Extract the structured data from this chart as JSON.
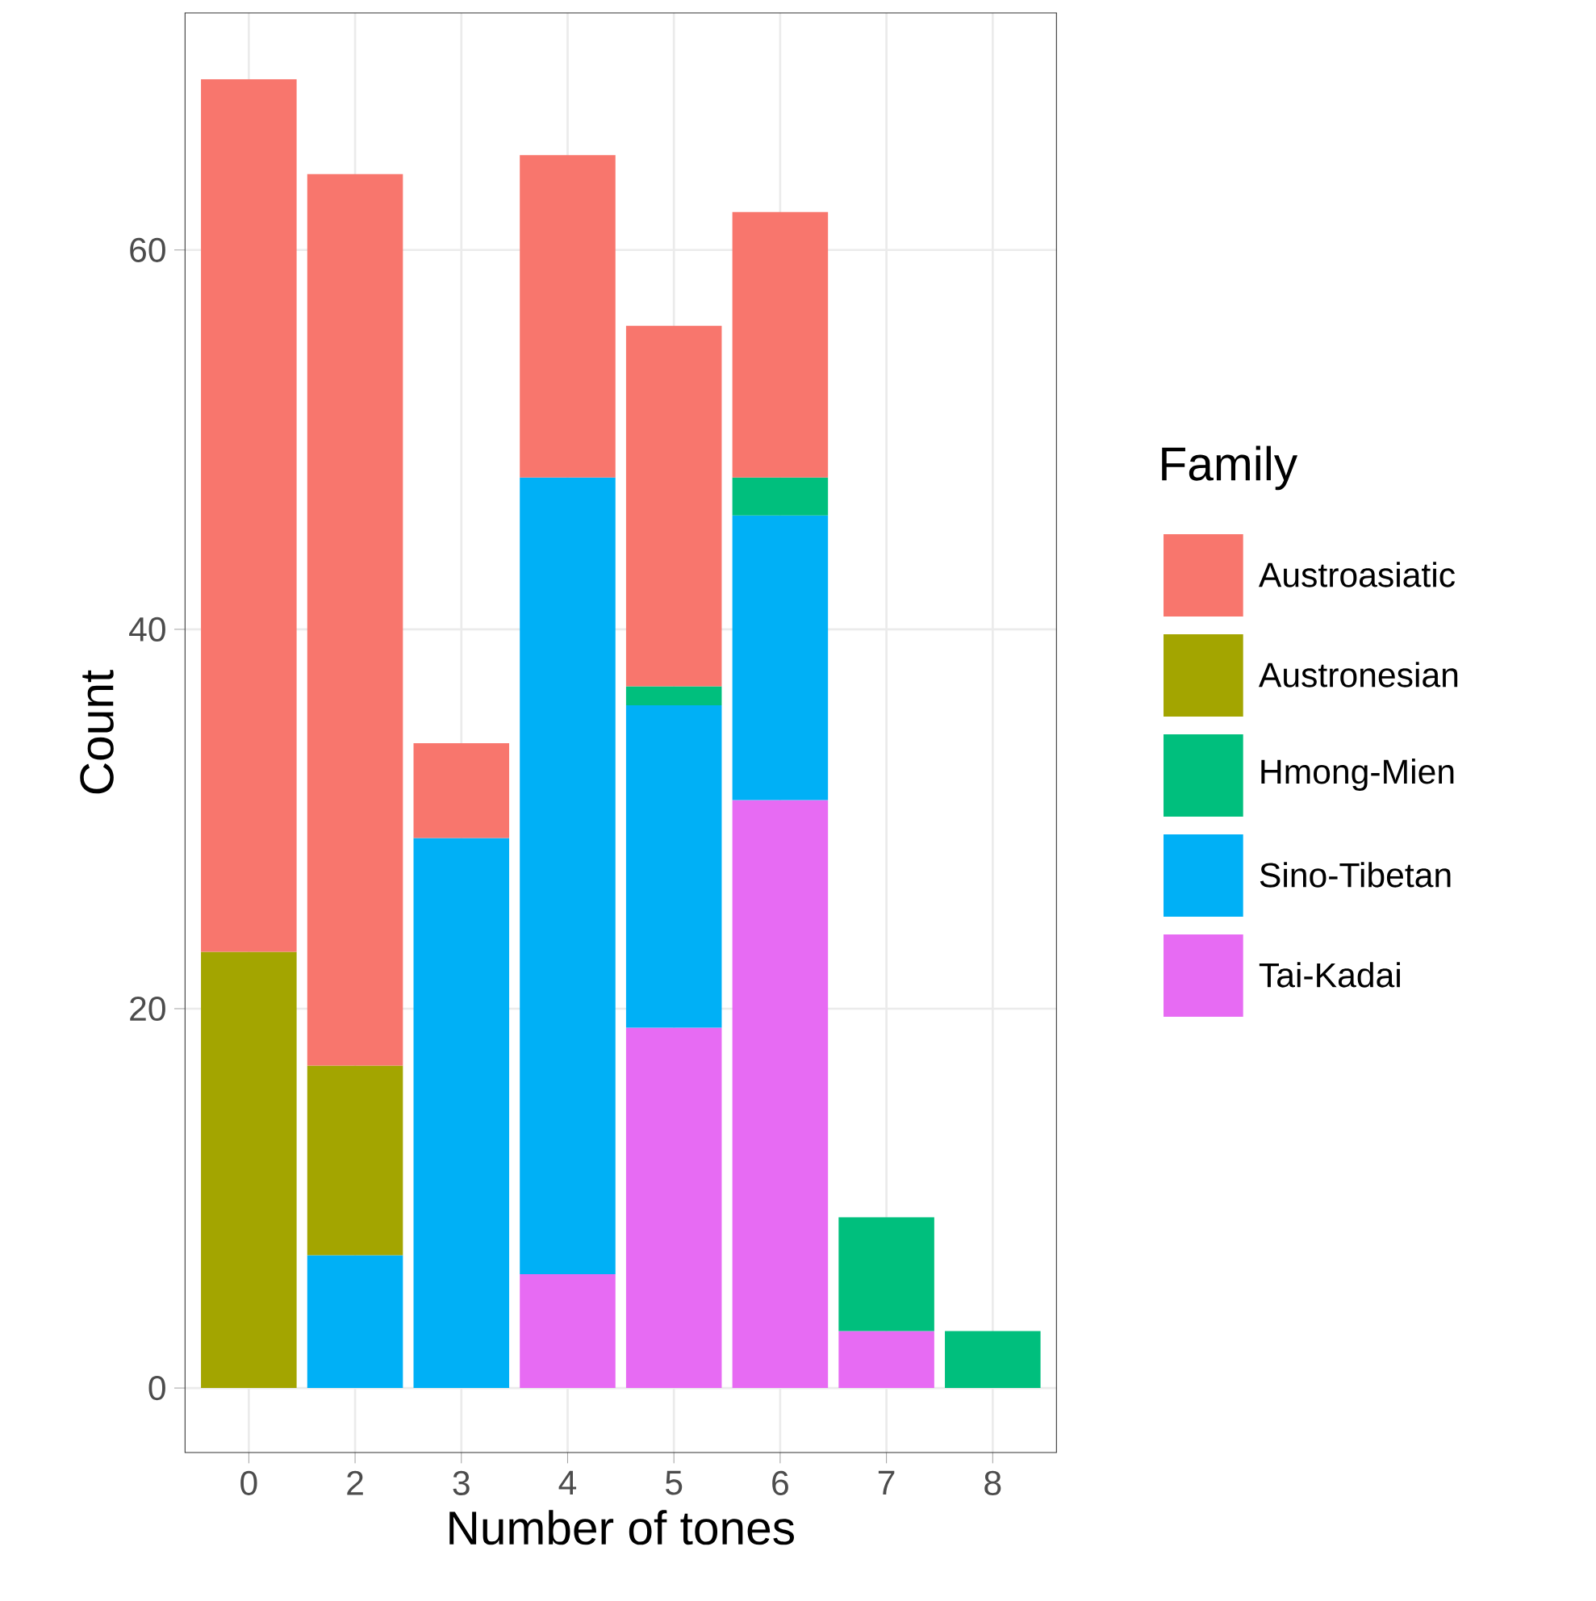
{
  "chart_data": {
    "type": "bar",
    "stacked": true,
    "xlabel": "Number of tones",
    "ylabel": "Count",
    "legend_title": "Family",
    "categories": [
      "0",
      "2",
      "3",
      "4",
      "5",
      "6",
      "7",
      "8"
    ],
    "series": [
      {
        "name": "Tai-Kadai",
        "color": "#e76bf3",
        "values": [
          null,
          null,
          null,
          6,
          19,
          31,
          3,
          null
        ]
      },
      {
        "name": "Sino-Tibetan",
        "color": "#00b0f6",
        "values": [
          null,
          7,
          29,
          42,
          17,
          15,
          null,
          null
        ]
      },
      {
        "name": "Hmong-Mien",
        "color": "#00bf7d",
        "values": [
          null,
          null,
          null,
          null,
          1,
          2,
          6,
          3
        ]
      },
      {
        "name": "Austronesian",
        "color": "#a3a500",
        "values": [
          23,
          10,
          null,
          null,
          null,
          null,
          null,
          null
        ]
      },
      {
        "name": "Austroasiatic",
        "color": "#f8766d",
        "values": [
          46,
          47,
          5,
          17,
          19,
          14,
          null,
          null
        ]
      }
    ],
    "ylim": [
      -3.4,
      72.5
    ],
    "yticks": [
      0,
      20,
      40,
      60
    ],
    "grid": true,
    "legend": "right"
  }
}
